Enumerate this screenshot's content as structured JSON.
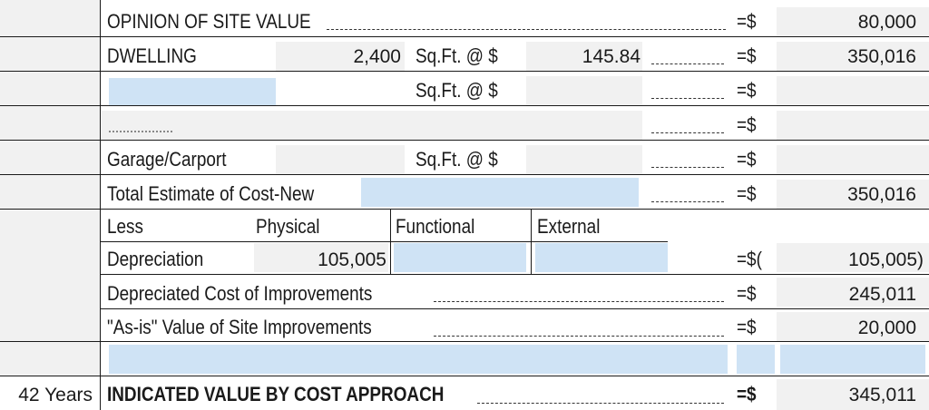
{
  "rows": {
    "site_value": {
      "label": "OPINION OF SITE VALUE",
      "eq": "=$",
      "amount": "80,000"
    },
    "dwelling": {
      "label": "DWELLING",
      "sqft": "2,400",
      "sqft_label": "Sq.Ft. @ $",
      "price": "145.84",
      "eq": "=$",
      "amount": "350,016"
    },
    "row3": {
      "sqft_label": "Sq.Ft. @ $",
      "eq": "=$"
    },
    "row4": {
      "eq": "=$"
    },
    "garage": {
      "label": "Garage/Carport",
      "sqft_label": "Sq.Ft. @ $",
      "eq": "=$"
    },
    "total": {
      "label": "Total Estimate of Cost-New",
      "eq": "=$",
      "amount": "350,016"
    },
    "less": {
      "label": "Less",
      "physical": "Physical",
      "functional": "Functional",
      "external": "External"
    },
    "depreciation": {
      "label": "Depreciation",
      "physical_value": "105,005",
      "eq": "=$(",
      "amount": "105,005)"
    },
    "depreciated": {
      "label": "Depreciated Cost of Improvements",
      "eq": "=$",
      "amount": "245,011"
    },
    "as_is": {
      "label": "\"As-is\" Value of Site Improvements",
      "eq": "=$",
      "amount": "20,000"
    },
    "indicated": {
      "left": "42 Years",
      "label": "INDICATED VALUE BY COST APPROACH",
      "eq": "=$",
      "amount": "345,011"
    }
  }
}
